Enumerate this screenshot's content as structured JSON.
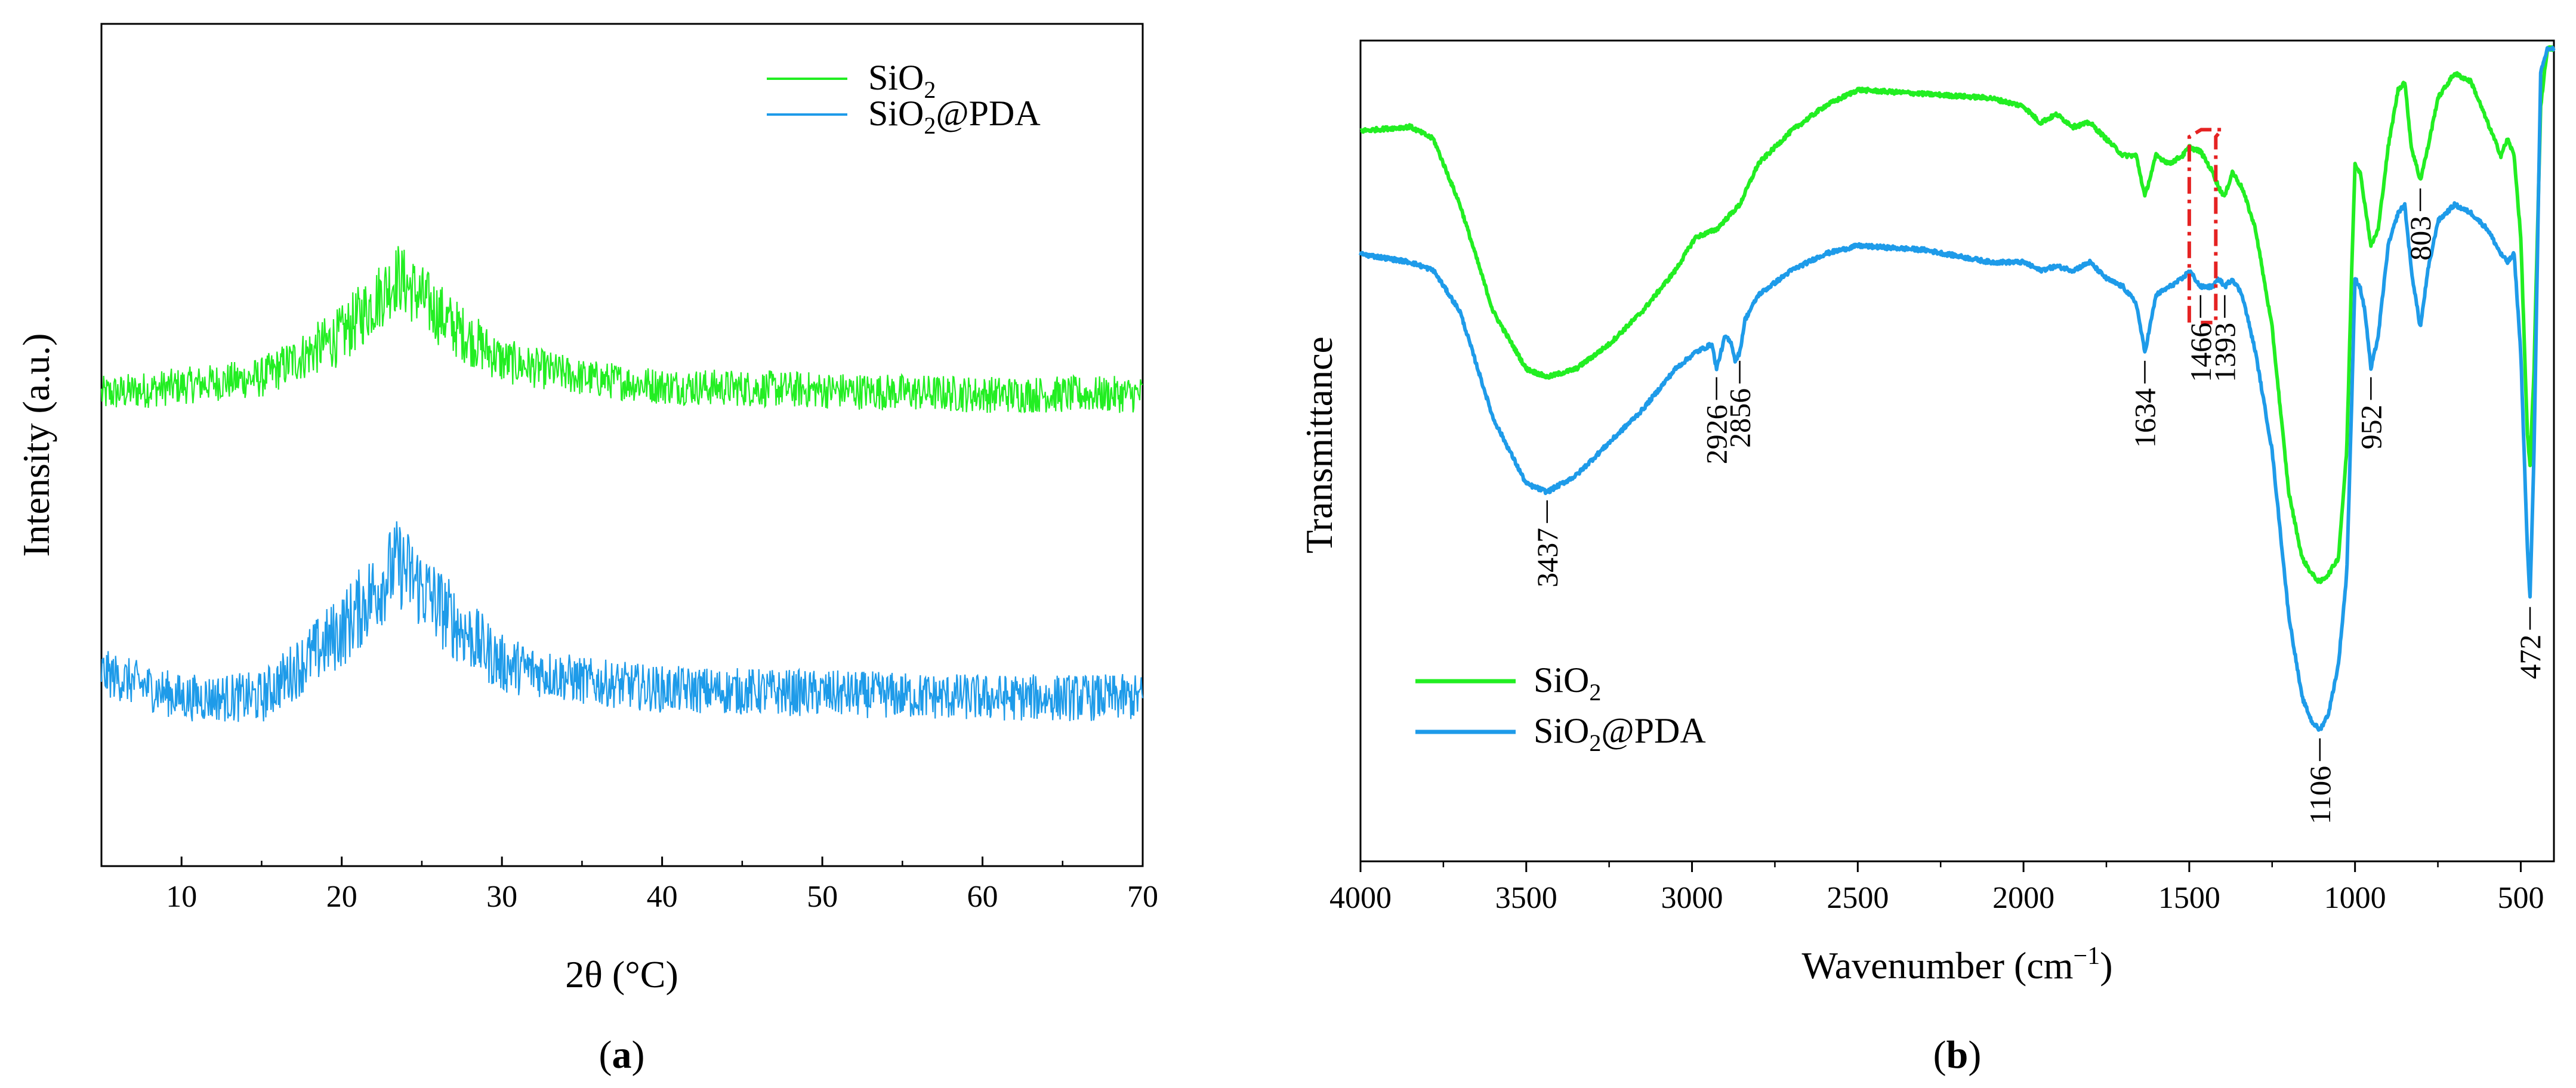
{
  "chart_data": [
    {
      "type": "line",
      "panel_label": "a",
      "xlabel": "2θ (°C)",
      "ylabel": "Intensity (a.u.)",
      "xlim": [
        5,
        70
      ],
      "x_ticks": [
        10,
        20,
        30,
        40,
        50,
        60,
        70
      ],
      "y_ticks_shown": false,
      "grid": false,
      "legend_position": "top-right",
      "series": [
        {
          "name": "SiO2",
          "label_main": "SiO",
          "label_sub": "2",
          "label_tail": "",
          "color": "#22ee22",
          "baseline": 0.56,
          "peak_center": 23.5,
          "peak_height": 0.14,
          "peak_width": 4.2,
          "noise": 0.022,
          "profile_x": [
            5,
            10,
            15,
            20,
            23.5,
            27,
            30,
            35,
            40,
            50,
            60,
            70
          ],
          "profile_y": [
            0.56,
            0.57,
            0.58,
            0.63,
            0.7,
            0.64,
            0.6,
            0.58,
            0.57,
            0.565,
            0.56,
            0.56
          ]
        },
        {
          "name": "SiO2@PDA",
          "label_main": "SiO",
          "label_sub": "2",
          "label_tail": "@PDA",
          "color": "#1e9be9",
          "baseline": 0.21,
          "peak_center": 23.5,
          "peak_height": 0.16,
          "peak_width": 4.2,
          "noise": 0.028,
          "profile_x": [
            5,
            10,
            15,
            20,
            23.5,
            27,
            30,
            35,
            40,
            50,
            60,
            70
          ],
          "profile_y": [
            0.23,
            0.2,
            0.2,
            0.28,
            0.36,
            0.29,
            0.24,
            0.22,
            0.21,
            0.205,
            0.2,
            0.2
          ]
        }
      ]
    },
    {
      "type": "line",
      "panel_label": "b",
      "xlabel_main": "Wavenumber (cm",
      "xlabel_sup": "−1",
      "xlabel_tail": ")",
      "ylabel": "Transmittance",
      "xlim": [
        4000,
        400
      ],
      "x_ticks": [
        4000,
        3500,
        3000,
        2500,
        2000,
        1500,
        1000,
        500
      ],
      "ylim": [
        0,
        100
      ],
      "y_ticks_shown": false,
      "grid": false,
      "legend_position": "bottom-left",
      "series": [
        {
          "name": "SiO2",
          "label_main": "SiO",
          "label_sub": "2",
          "label_tail": "",
          "color": "#22ee22",
          "x": [
            4000,
            3850,
            3780,
            3700,
            3600,
            3500,
            3437,
            3350,
            3250,
            3150,
            3050,
            2990,
            2926,
            2880,
            2856,
            2800,
            2700,
            2600,
            2500,
            2300,
            2100,
            2000,
            1950,
            1900,
            1850,
            1800,
            1750,
            1700,
            1660,
            1634,
            1600,
            1560,
            1520,
            1500,
            1466,
            1430,
            1410,
            1393,
            1370,
            1340,
            1300,
            1250,
            1200,
            1160,
            1130,
            1106,
            1080,
            1050,
            1025,
            1010,
            1000,
            985,
            970,
            952,
            930,
            900,
            870,
            850,
            830,
            803,
            780,
            750,
            700,
            650,
            600,
            560,
            540,
            520,
            500,
            480,
            472,
            460,
            440,
            420,
            400
          ],
          "y": [
            89,
            89.5,
            88,
            80,
            67,
            60,
            59,
            60,
            63,
            67,
            72,
            76,
            77,
            79,
            80,
            85,
            89,
            92,
            94,
            93.5,
            93,
            92,
            90,
            91,
            89.5,
            90,
            88,
            86,
            86,
            81,
            86,
            85,
            86,
            87,
            86.5,
            84,
            82,
            81,
            84,
            82,
            77,
            65,
            45,
            37,
            35,
            34,
            35,
            37,
            50,
            72,
            85,
            84,
            80,
            75,
            77,
            87,
            94,
            95,
            87,
            83,
            87,
            93,
            96,
            95,
            90,
            86,
            88,
            86,
            76,
            52,
            48,
            60,
            92,
            99,
            99
          ]
        },
        {
          "name": "SiO2@PDA",
          "label_main": "SiO",
          "label_sub": "2",
          "label_tail": "@PDA",
          "color": "#1e9be9",
          "x": [
            4000,
            3850,
            3780,
            3700,
            3600,
            3500,
            3437,
            3350,
            3250,
            3150,
            3050,
            2990,
            2940,
            2926,
            2900,
            2880,
            2870,
            2856,
            2840,
            2800,
            2700,
            2600,
            2500,
            2300,
            2100,
            2000,
            1950,
            1900,
            1850,
            1800,
            1750,
            1700,
            1660,
            1634,
            1600,
            1560,
            1520,
            1500,
            1466,
            1430,
            1410,
            1393,
            1370,
            1340,
            1300,
            1250,
            1200,
            1160,
            1130,
            1106,
            1080,
            1050,
            1025,
            1010,
            1000,
            985,
            970,
            952,
            930,
            900,
            870,
            850,
            830,
            803,
            780,
            750,
            700,
            650,
            600,
            560,
            540,
            520,
            500,
            480,
            472,
            460,
            440,
            420,
            400
          ],
          "y": [
            74,
            73,
            72,
            67,
            54,
            46,
            45,
            47,
            51,
            55,
            60,
            62,
            63,
            60,
            64,
            63,
            61,
            62,
            66,
            69,
            72,
            74,
            75,
            74.5,
            73,
            73,
            72,
            72.5,
            72,
            73,
            71,
            70,
            68,
            62,
            69,
            70,
            71,
            72,
            70,
            70,
            71,
            70,
            71,
            69,
            62,
            50,
            30,
            20,
            17,
            16,
            18,
            24,
            35,
            56,
            71,
            70,
            67,
            60,
            64,
            75,
            79,
            80,
            72,
            65,
            72,
            78,
            80,
            79,
            77,
            74,
            73,
            74,
            62,
            38,
            32,
            50,
            96,
            99,
            99
          ]
        }
      ],
      "peak_labels": [
        "3437",
        "2926",
        "2856",
        "1634",
        "1466",
        "1393",
        "1106",
        "952",
        "803",
        "472"
      ],
      "peak_positions": [
        3437,
        2926,
        2856,
        1634,
        1466,
        1393,
        1106,
        952,
        803,
        472
      ],
      "peak_anchor_series": [
        "SiO2@PDA",
        "SiO2@PDA",
        "SiO2@PDA",
        "SiO2@PDA",
        "SiO2@PDA",
        "SiO2@PDA",
        "SiO2@PDA",
        "SiO2@PDA",
        "SiO2",
        "SiO2@PDA"
      ],
      "highlight_box_color": "#e52222",
      "highlight_range": [
        1500,
        1420
      ]
    }
  ]
}
